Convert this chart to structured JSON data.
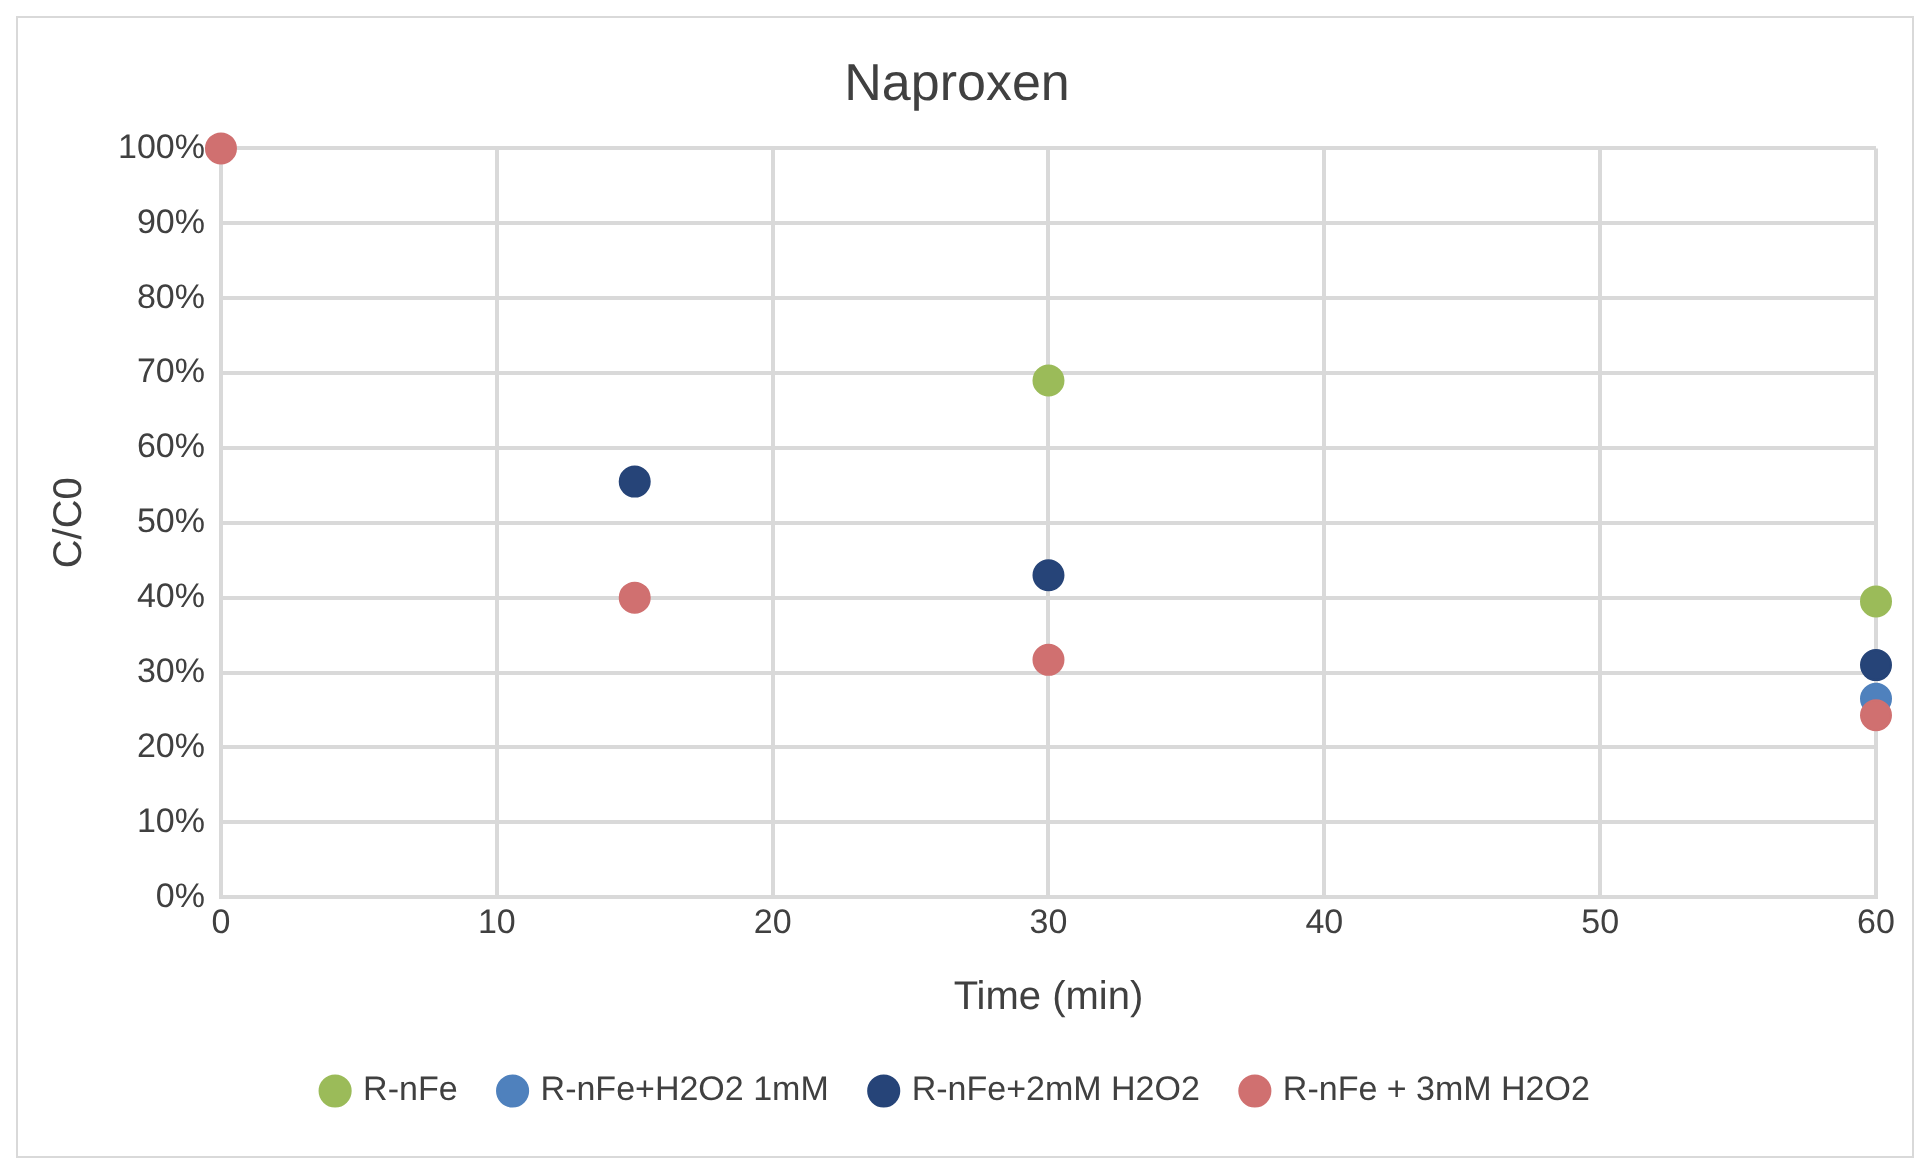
{
  "chart_data": {
    "type": "scatter",
    "title": "Naproxen",
    "xlabel": "Time (min)",
    "ylabel": "C/C0",
    "xlim": [
      0,
      60
    ],
    "xticks": [
      0,
      10,
      20,
      30,
      40,
      50,
      60
    ],
    "ylim": [
      0,
      100
    ],
    "yticks": [
      {
        "value": 0,
        "label": "0%"
      },
      {
        "value": 10,
        "label": "10%"
      },
      {
        "value": 20,
        "label": "20%"
      },
      {
        "value": 30,
        "label": "30%"
      },
      {
        "value": 40,
        "label": "40%"
      },
      {
        "value": 50,
        "label": "50%"
      },
      {
        "value": 60,
        "label": "60%"
      },
      {
        "value": 70,
        "label": "70%"
      },
      {
        "value": 80,
        "label": "80%"
      },
      {
        "value": 90,
        "label": "90%"
      },
      {
        "value": 100,
        "label": "100%"
      }
    ],
    "x": [
      0,
      15,
      30,
      60
    ],
    "series": [
      {
        "name": "R-nFe",
        "color": "#9bbb59",
        "values": [
          null,
          null,
          69,
          39.5
        ]
      },
      {
        "name": "R-nFe+H2O2 1mM",
        "color": "#4f81bd",
        "values": [
          null,
          null,
          null,
          26.5
        ]
      },
      {
        "name": "R-nFe+2mM H2O2",
        "color": "#264478",
        "values": [
          null,
          55.5,
          43,
          31
        ]
      },
      {
        "name": "R-nFe + 3mM H2O2",
        "color": "#d07070",
        "values": [
          100,
          40,
          31.7,
          24.3
        ]
      }
    ],
    "grid": true,
    "legend": "bottom",
    "marker": "circle"
  }
}
